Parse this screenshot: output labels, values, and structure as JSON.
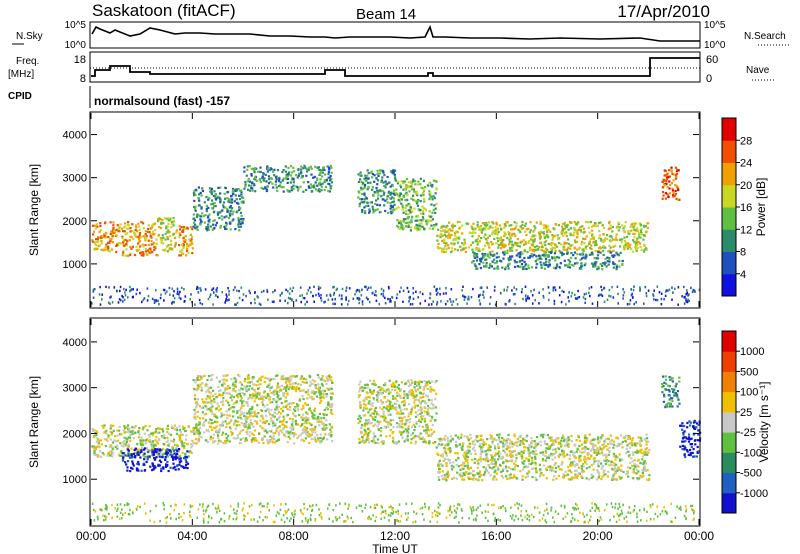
{
  "header": {
    "station": "Saskatoon (fitACF)",
    "beam": "Beam 14",
    "date": "17/Apr/2010"
  },
  "strip": {
    "nsky_label": "N.Sky",
    "nsky_ticks": [
      "10^5",
      "10^0"
    ],
    "nsearch_label": "N.Search",
    "nsearch_ticks": [
      "10^5",
      "10^0"
    ],
    "freq_label": "Freq.",
    "freq_unit": "[MHz]",
    "freq_ticks": [
      "18",
      "8"
    ],
    "nave_label": "Nave",
    "nave_ticks": [
      "60",
      "0"
    ],
    "cpid_label": "CPID",
    "cpid_value": "normalsound (fast) -157"
  },
  "chart_data": [
    {
      "type": "heatmap",
      "name": "power",
      "ylabel": "Slant Range [km]",
      "ylim": [
        0,
        4500
      ],
      "yticks": [
        "1000",
        "2000",
        "3000",
        "4000"
      ],
      "xlim": [
        0,
        24
      ],
      "colorbar_label": "Power [dB]",
      "colorbar_ticks": [
        "4",
        "8",
        "12",
        "16",
        "20",
        "24",
        "28"
      ],
      "colors": [
        "#1010e0",
        "#2050c0",
        "#2b8c6a",
        "#5fbf40",
        "#c8d820",
        "#f0a000",
        "#f05000",
        "#e00000"
      ],
      "regions": [
        {
          "t0": 0.0,
          "t1": 1.2,
          "r0": 1300,
          "r1": 2000,
          "level": 5
        },
        {
          "t0": 1.2,
          "t1": 2.6,
          "r0": 1200,
          "r1": 2000,
          "level": 5
        },
        {
          "t0": 2.6,
          "t1": 3.3,
          "r0": 1300,
          "r1": 2100,
          "level": 4
        },
        {
          "t0": 3.3,
          "t1": 4.0,
          "r0": 1200,
          "r1": 1900,
          "level": 5
        },
        {
          "t0": 4.0,
          "t1": 6.0,
          "r0": 1800,
          "r1": 2800,
          "level": 2
        },
        {
          "t0": 6.0,
          "t1": 9.5,
          "r0": 2700,
          "r1": 3300,
          "level": 2
        },
        {
          "t0": 10.5,
          "t1": 12.0,
          "r0": 2200,
          "r1": 3200,
          "level": 2
        },
        {
          "t0": 12.0,
          "t1": 13.6,
          "r0": 1800,
          "r1": 3000,
          "level": 3
        },
        {
          "t0": 13.6,
          "t1": 22.0,
          "r0": 1300,
          "r1": 2000,
          "level": 4
        },
        {
          "t0": 15.0,
          "t1": 21.0,
          "r0": 900,
          "r1": 1300,
          "level": 2
        },
        {
          "t0": 22.5,
          "t1": 23.2,
          "r0": 2500,
          "r1": 3300,
          "level": 6
        }
      ]
    },
    {
      "type": "heatmap",
      "name": "velocity",
      "ylabel": "Slant Range [km]",
      "ylim": [
        0,
        4500
      ],
      "yticks": [
        "1000",
        "2000",
        "3000",
        "4000"
      ],
      "xlim": [
        0,
        24
      ],
      "xticks": [
        "00:00",
        "04:00",
        "08:00",
        "12:00",
        "16:00",
        "20:00",
        "00:00"
      ],
      "xlabel": "Time UT",
      "colorbar_label": "Velocity [m s⁻¹]",
      "colorbar_ticks": [
        "1000",
        "500",
        "100",
        "25",
        "-25",
        "-100",
        "-500",
        "-1000"
      ],
      "colors": [
        "#1010d0",
        "#2060c0",
        "#2a8a60",
        "#60c040",
        "#c8c8c8",
        "#f0c000",
        "#f08000",
        "#f04000",
        "#e00000"
      ],
      "regions": [
        {
          "t0": 0.0,
          "t1": 4.0,
          "r0": 1500,
          "r1": 2200,
          "level": 4
        },
        {
          "t0": 1.2,
          "t1": 3.8,
          "r0": 1200,
          "r1": 1700,
          "level": 0
        },
        {
          "t0": 4.0,
          "t1": 9.5,
          "r0": 1800,
          "r1": 3300,
          "level": 4
        },
        {
          "t0": 10.5,
          "t1": 13.6,
          "r0": 1800,
          "r1": 3200,
          "level": 4
        },
        {
          "t0": 13.6,
          "t1": 22.0,
          "r0": 1000,
          "r1": 2000,
          "level": 4
        },
        {
          "t0": 22.5,
          "t1": 23.2,
          "r0": 2600,
          "r1": 3300,
          "level": 2
        },
        {
          "t0": 23.2,
          "t1": 24.0,
          "r0": 1500,
          "r1": 2300,
          "level": 0
        }
      ]
    }
  ]
}
